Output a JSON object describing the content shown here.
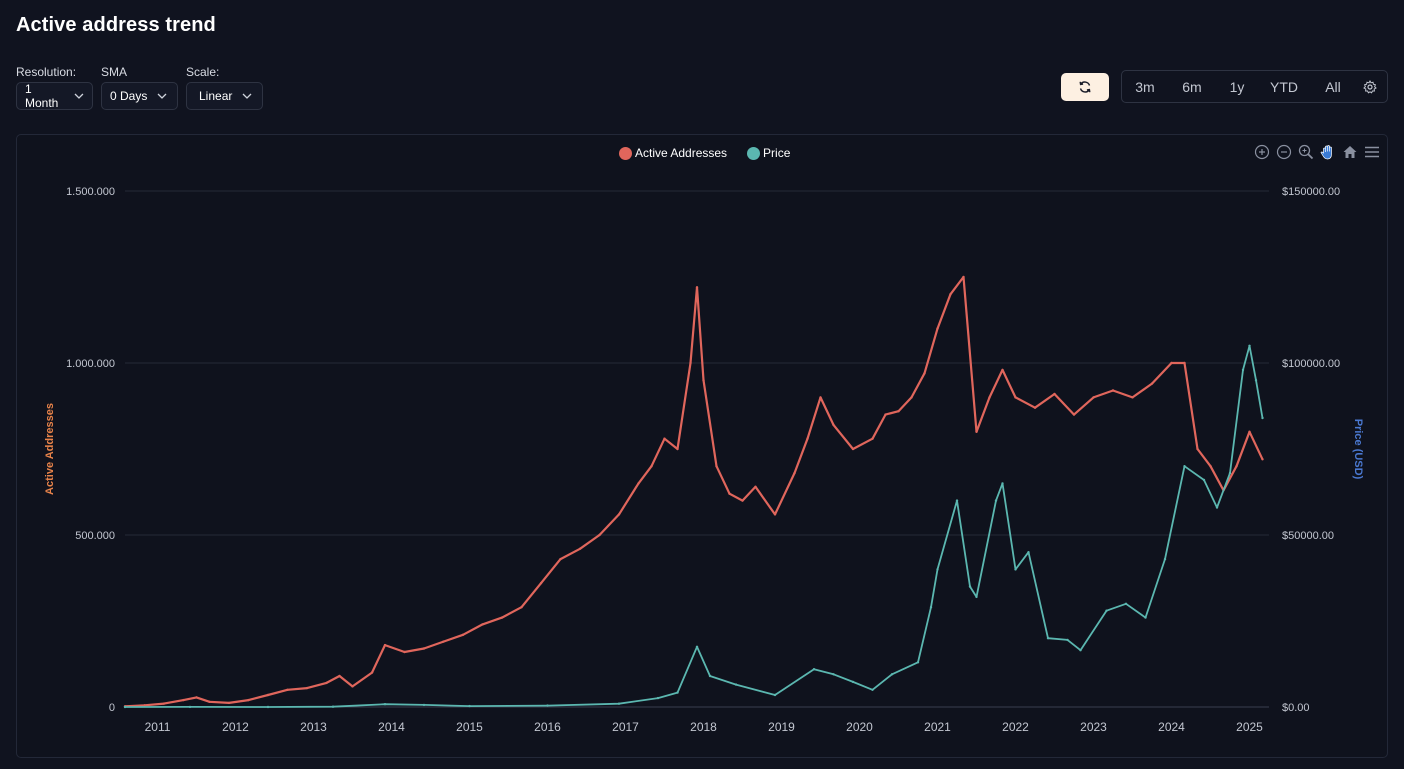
{
  "page": {
    "title": "Active address trend"
  },
  "controls": {
    "resolution": {
      "label": "Resolution:",
      "value": "1 Month"
    },
    "sma": {
      "label": "SMA",
      "value": "0 Days"
    },
    "scale": {
      "label": "Scale:",
      "value": "Linear"
    }
  },
  "range_buttons": [
    "3m",
    "6m",
    "1y",
    "YTD",
    "All"
  ],
  "icons": {
    "refresh": "refresh-icon",
    "settings": "gear-icon",
    "toolbar": [
      "zoom-in-icon",
      "zoom-out-icon",
      "zoom-select-icon",
      "pan-hand-icon",
      "home-icon",
      "menu-icon"
    ]
  },
  "colors": {
    "background": "#10131f",
    "active_addresses": "#e0665c",
    "price": "#5bb7b0",
    "left_axis_title": "#e8834a",
    "right_axis_title": "#4a78d0",
    "pan_active": "#3a7bd5"
  },
  "chart_data": {
    "type": "line",
    "title": "",
    "legend_position": "top-center",
    "grid": true,
    "x_ticks": [
      "2011",
      "2012",
      "2013",
      "2014",
      "2015",
      "2016",
      "2017",
      "2018",
      "2019",
      "2020",
      "2021",
      "2022",
      "2023",
      "2024",
      "2025"
    ],
    "xlim": [
      "2010-08",
      "2025-04"
    ],
    "ylabel_left": "Active Addresses",
    "ylabel_right": "Price (USD)",
    "ylim_left": [
      0,
      1500000
    ],
    "ylim_right": [
      0,
      150000
    ],
    "left_ticks": [
      "0",
      "500.000",
      "1.000.000",
      "1.500.000"
    ],
    "right_ticks": [
      "$0.00",
      "$50000.00",
      "$100000.00",
      "$150000.00"
    ],
    "series": [
      {
        "name": "Active Addresses",
        "axis": "left",
        "color": "#e0665c",
        "x": [
          "2010-08",
          "2010-11",
          "2011-02",
          "2011-05",
          "2011-07",
          "2011-09",
          "2011-12",
          "2012-03",
          "2012-06",
          "2012-09",
          "2012-12",
          "2013-03",
          "2013-05",
          "2013-07",
          "2013-10",
          "2013-12",
          "2014-03",
          "2014-06",
          "2014-09",
          "2014-12",
          "2015-03",
          "2015-06",
          "2015-09",
          "2015-12",
          "2016-03",
          "2016-06",
          "2016-09",
          "2016-12",
          "2017-03",
          "2017-05",
          "2017-07",
          "2017-09",
          "2017-11",
          "2017-12",
          "2018-01",
          "2018-03",
          "2018-05",
          "2018-07",
          "2018-09",
          "2018-12",
          "2019-03",
          "2019-05",
          "2019-07",
          "2019-09",
          "2019-12",
          "2020-03",
          "2020-05",
          "2020-07",
          "2020-09",
          "2020-11",
          "2021-01",
          "2021-03",
          "2021-05",
          "2021-07",
          "2021-09",
          "2021-11",
          "2022-01",
          "2022-04",
          "2022-07",
          "2022-10",
          "2023-01",
          "2023-04",
          "2023-07",
          "2023-10",
          "2024-01",
          "2024-03",
          "2024-05",
          "2024-07",
          "2024-09",
          "2024-11",
          "2025-01",
          "2025-03"
        ],
        "values": [
          2000,
          5000,
          10000,
          20000,
          28000,
          15000,
          12000,
          20000,
          35000,
          50000,
          55000,
          70000,
          90000,
          60000,
          100000,
          180000,
          160000,
          170000,
          190000,
          210000,
          240000,
          260000,
          290000,
          360000,
          430000,
          460000,
          500000,
          560000,
          650000,
          700000,
          780000,
          750000,
          1000000,
          1220000,
          950000,
          700000,
          620000,
          600000,
          640000,
          560000,
          680000,
          780000,
          900000,
          820000,
          750000,
          780000,
          850000,
          860000,
          900000,
          970000,
          1100000,
          1200000,
          1250000,
          800000,
          900000,
          980000,
          900000,
          870000,
          910000,
          850000,
          900000,
          920000,
          900000,
          940000,
          1000000,
          1000000,
          750000,
          700000,
          630000,
          700000,
          800000,
          720000
        ]
      },
      {
        "name": "Price",
        "axis": "right",
        "color": "#5bb7b0",
        "x": [
          "2010-08",
          "2011-06",
          "2012-06",
          "2013-04",
          "2013-12",
          "2014-06",
          "2015-01",
          "2016-01",
          "2016-12",
          "2017-06",
          "2017-09",
          "2017-12",
          "2018-02",
          "2018-06",
          "2018-12",
          "2019-06",
          "2019-09",
          "2019-12",
          "2020-03",
          "2020-06",
          "2020-10",
          "2020-12",
          "2021-01",
          "2021-04",
          "2021-06",
          "2021-07",
          "2021-10",
          "2021-11",
          "2022-01",
          "2022-03",
          "2022-06",
          "2022-09",
          "2022-11",
          "2023-03",
          "2023-06",
          "2023-09",
          "2023-12",
          "2024-03",
          "2024-06",
          "2024-08",
          "2024-10",
          "2024-12",
          "2025-01",
          "2025-02",
          "2025-03"
        ],
        "values": [
          0,
          15,
          6,
          100,
          800,
          600,
          250,
          400,
          950,
          2600,
          4200,
          17500,
          9000,
          6500,
          3500,
          11000,
          9500,
          7300,
          5000,
          9500,
          13000,
          29000,
          40000,
          60000,
          35000,
          32000,
          60000,
          65000,
          40000,
          45000,
          20000,
          19500,
          16500,
          28000,
          30000,
          26000,
          43000,
          70000,
          66000,
          58000,
          68000,
          98000,
          105000,
          95000,
          84000
        ]
      }
    ]
  }
}
